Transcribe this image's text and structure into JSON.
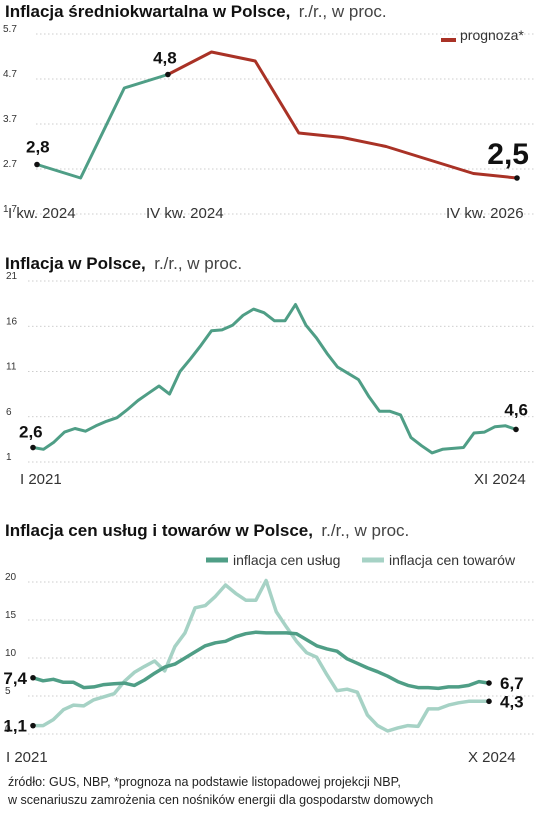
{
  "colors": {
    "green": "#4f9e86",
    "light_green": "#a6d2c5",
    "red": "#a93226",
    "text": "#222222"
  },
  "chart_data": [
    {
      "type": "line",
      "title": "Inflacja średniokwartalna w Polsce,",
      "subtitle": "r./r., w proc.",
      "ylim": [
        1.7,
        5.7
      ],
      "yticks": [
        "5.7",
        "4.7",
        "3.7",
        "2.7",
        "1.7"
      ],
      "grid": true,
      "x_labels": [
        "I kw. 2024",
        "IV kw. 2024",
        "IV kw. 2026"
      ],
      "legend": {
        "label": "prognoza*",
        "position": "top-right"
      },
      "series": [
        {
          "x": [
            "I kw. 2024",
            "II kw. 2024",
            "III kw. 2024",
            "IV kw. 2024"
          ],
          "values": [
            2.8,
            2.5,
            4.5,
            4.8
          ]
        },
        {
          "x": [
            "IV kw. 2024",
            "I kw. 2025",
            "II kw. 2025",
            "III kw. 2025",
            "IV kw. 2025",
            "I kw. 2026",
            "II kw. 2026",
            "III kw. 2026",
            "IV kw. 2026"
          ],
          "values": [
            4.8,
            5.3,
            5.1,
            3.5,
            3.4,
            3.2,
            2.9,
            2.6,
            2.5
          ]
        }
      ],
      "annotations": [
        {
          "label": "2,8",
          "x": "I kw. 2024",
          "value": 2.8
        },
        {
          "label": "4,8",
          "x": "IV kw. 2024",
          "value": 4.8
        },
        {
          "label": "2,5",
          "x": "IV kw. 2026",
          "value": 2.5
        }
      ]
    },
    {
      "type": "line",
      "title": "Inflacja w Polsce,",
      "subtitle": "r./r., w proc.",
      "ylim": [
        1,
        21
      ],
      "yticks": [
        "21",
        "16",
        "11",
        "6",
        "1"
      ],
      "grid": true,
      "x_labels": [
        "I 2021",
        "XI 2024"
      ],
      "x_range": [
        "I 2021",
        "XI 2024"
      ],
      "series": [
        {
          "values": [
            2.6,
            2.4,
            3.2,
            4.3,
            4.7,
            4.4,
            5.0,
            5.5,
            5.9,
            6.8,
            7.8,
            8.6,
            9.4,
            8.5,
            11.0,
            12.4,
            13.9,
            15.5,
            15.6,
            16.1,
            17.2,
            17.9,
            17.5,
            16.6,
            16.6,
            18.4,
            16.1,
            14.7,
            13.0,
            11.5,
            10.8,
            10.1,
            8.2,
            6.6,
            6.6,
            6.2,
            3.7,
            2.8,
            2.0,
            2.4,
            2.5,
            2.6,
            4.2,
            4.3,
            4.9,
            5.0,
            4.6
          ]
        }
      ],
      "annotations": [
        {
          "label": "2,6",
          "x": "I 2021",
          "value": 2.6
        },
        {
          "label": "4,6",
          "x": "XI 2024",
          "value": 4.6
        }
      ]
    },
    {
      "type": "line",
      "title": "Inflacja cen usług i towarów w Polsce,",
      "subtitle": "r./r., w proc.",
      "ylim": [
        0,
        20
      ],
      "yticks": [
        "20",
        "15",
        "10",
        "5",
        "0"
      ],
      "grid": true,
      "x_labels": [
        "I 2021",
        "X 2024"
      ],
      "x_range": [
        "I 2021",
        "X 2024"
      ],
      "legend": {
        "position": "top-right"
      },
      "series": [
        {
          "name": "inflacja cen usług",
          "values": [
            7.4,
            7.0,
            7.2,
            6.8,
            6.8,
            6.1,
            6.2,
            6.5,
            6.6,
            6.7,
            6.4,
            7.1,
            8.0,
            8.8,
            9.2,
            10.0,
            10.8,
            11.6,
            12.0,
            12.2,
            12.8,
            13.2,
            13.4,
            13.3,
            13.3,
            13.3,
            13.2,
            12.4,
            11.6,
            11.2,
            10.9,
            9.9,
            9.3,
            8.7,
            8.2,
            7.6,
            6.9,
            6.4,
            6.1,
            6.1,
            6.0,
            6.2,
            6.2,
            6.4,
            6.9,
            6.7
          ]
        },
        {
          "name": "inflacja cen towarów",
          "values": [
            1.1,
            1.1,
            1.9,
            3.2,
            3.8,
            3.7,
            4.5,
            4.9,
            5.3,
            6.9,
            8.1,
            8.9,
            9.6,
            8.3,
            11.5,
            13.3,
            16.6,
            16.9,
            18.1,
            19.6,
            18.5,
            17.6,
            17.6,
            20.2,
            16.1,
            14.1,
            12.2,
            10.7,
            10.1,
            7.8,
            5.7,
            5.9,
            5.5,
            2.5,
            1.1,
            0.4,
            0.8,
            1.1,
            1.0,
            3.3,
            3.3,
            3.8,
            4.1,
            4.3,
            4.3,
            4.3
          ]
        }
      ],
      "annotations": [
        {
          "label": "7,4",
          "series": 0,
          "index": 0,
          "value": 7.4
        },
        {
          "label": "1,1",
          "series": 1,
          "index": 0,
          "value": 1.1
        },
        {
          "label": "6,7",
          "series": 0,
          "index": 45,
          "value": 6.7
        },
        {
          "label": "4,3",
          "series": 1,
          "index": 45,
          "value": 4.3
        }
      ]
    }
  ],
  "source": {
    "line1": "źródło: GUS, NBP, *prognoza na podstawie listopadowej projekcji NBP,",
    "line2": "w scenariuszu zamrożenia cen nośników energii dla gospodarstw domowych"
  }
}
